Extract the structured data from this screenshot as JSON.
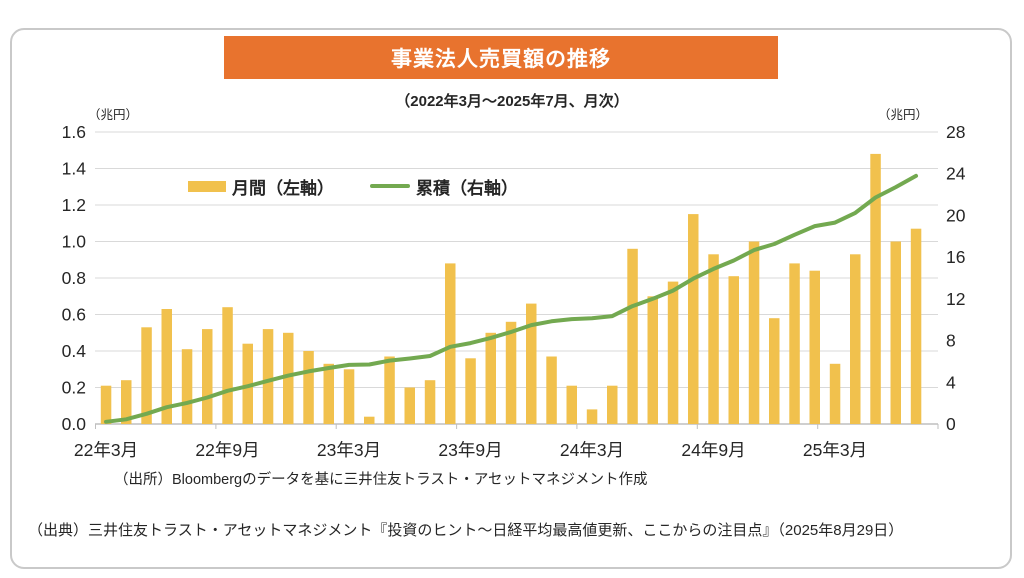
{
  "header": {
    "title": "事業法人売買額の推移",
    "subtitle": "（2022年3月～2025年7月、月次）"
  },
  "theme": {
    "banner_bg": "#e8732e",
    "banner_text": "#ffffff",
    "bar_color": "#f1c14d",
    "line_color": "#73a950",
    "grid_color": "#d9d9d9",
    "axis_color": "#bfbfbf",
    "border_color": "#c9c9c9"
  },
  "chart_data": {
    "type": "bar",
    "title": "事業法人売買額の推移",
    "subtitle": "（2022年3月～2025年7月、月次）",
    "n_months": 41,
    "x_first_month": "22年3月",
    "x_last_month": "25年7月",
    "x_tick_labels": [
      "22年3月",
      "22年9月",
      "23年3月",
      "23年9月",
      "24年3月",
      "24年9月",
      "25年3月"
    ],
    "x_tick_interval_months": 6,
    "grid": true,
    "legend_position": "top-left-inside",
    "left_axis": {
      "unit": "（兆円）",
      "min": 0,
      "max": 1.6,
      "ticks": [
        "0.0",
        "0.2",
        "0.4",
        "0.6",
        "0.8",
        "1.0",
        "1.2",
        "1.4",
        "1.6"
      ]
    },
    "right_axis": {
      "unit": "（兆円）",
      "min": 0,
      "max": 28,
      "ticks": [
        "0",
        "4",
        "8",
        "12",
        "16",
        "20",
        "24",
        "28"
      ]
    },
    "series": [
      {
        "name": "月間（左軸）",
        "type": "bar",
        "axis": "left",
        "color": "#f1c14d",
        "values": [
          0.21,
          0.24,
          0.53,
          0.63,
          0.41,
          0.52,
          0.64,
          0.44,
          0.52,
          0.5,
          0.4,
          0.33,
          0.3,
          0.04,
          0.37,
          0.2,
          0.24,
          0.88,
          0.36,
          0.5,
          0.56,
          0.66,
          0.37,
          0.21,
          0.08,
          0.21,
          0.96,
          0.7,
          0.78,
          1.15,
          0.93,
          0.81,
          1.0,
          0.58,
          0.88,
          0.84,
          0.33,
          0.93,
          1.48,
          1.0,
          1.07
        ]
      },
      {
        "name": "累積（右軸）",
        "type": "line",
        "axis": "right",
        "color": "#73a950",
        "values": [
          0.21,
          0.45,
          0.98,
          1.61,
          2.02,
          2.54,
          3.18,
          3.62,
          4.14,
          4.64,
          5.04,
          5.37,
          5.67,
          5.71,
          6.08,
          6.28,
          6.52,
          7.4,
          7.76,
          8.26,
          8.82,
          9.48,
          9.85,
          10.06,
          10.14,
          10.35,
          11.31,
          12.01,
          12.79,
          13.94,
          14.87,
          15.68,
          16.68,
          17.26,
          18.14,
          18.98,
          19.31,
          20.24,
          21.72,
          22.72,
          23.79
        ]
      }
    ]
  },
  "footer": {
    "source": "（出所）Bloombergのデータを基に三井住友トラスト・アセットマネジメント作成",
    "caption": "（出典）三井住友トラスト・アセットマネジメント『投資のヒント～日経平均最高値更新、ここからの注目点』（2025年8月29日）"
  }
}
